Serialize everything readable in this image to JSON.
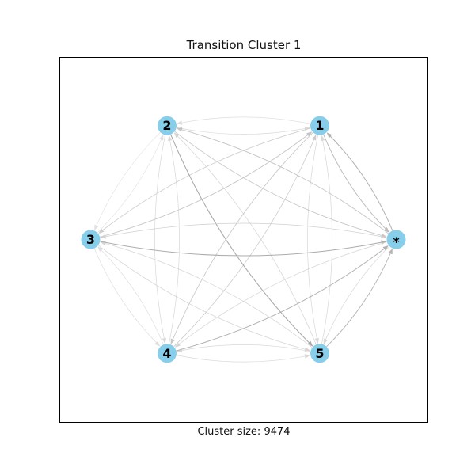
{
  "title": "Transition Cluster 1",
  "caption": "Cluster size: 9474",
  "colors": {
    "node": "#87ceeb",
    "frame": "#000000"
  },
  "nodes": [
    {
      "id": "1",
      "label": "1"
    },
    {
      "id": "2",
      "label": "2"
    },
    {
      "id": "3",
      "label": "3"
    },
    {
      "id": "4",
      "label": "4"
    },
    {
      "id": "5",
      "label": "5"
    },
    {
      "id": "*",
      "label": "*"
    }
  ],
  "edges": [
    {
      "from": "1",
      "to": "2",
      "weight": 0.15
    },
    {
      "from": "2",
      "to": "1",
      "weight": 0.2
    },
    {
      "from": "1",
      "to": "3",
      "weight": 0.35
    },
    {
      "from": "3",
      "to": "1",
      "weight": 0.45
    },
    {
      "from": "1",
      "to": "4",
      "weight": 0.4
    },
    {
      "from": "4",
      "to": "1",
      "weight": 0.35
    },
    {
      "from": "1",
      "to": "5",
      "weight": 0.2
    },
    {
      "from": "5",
      "to": "1",
      "weight": 0.2
    },
    {
      "from": "1",
      "to": "*",
      "weight": 0.55
    },
    {
      "from": "*",
      "to": "1",
      "weight": 0.65
    },
    {
      "from": "2",
      "to": "3",
      "weight": 0.1
    },
    {
      "from": "3",
      "to": "2",
      "weight": 0.1
    },
    {
      "from": "2",
      "to": "4",
      "weight": 0.2
    },
    {
      "from": "4",
      "to": "2",
      "weight": 0.2
    },
    {
      "from": "2",
      "to": "5",
      "weight": 0.75
    },
    {
      "from": "5",
      "to": "2",
      "weight": 0.25
    },
    {
      "from": "2",
      "to": "*",
      "weight": 0.4
    },
    {
      "from": "*",
      "to": "2",
      "weight": 0.45
    },
    {
      "from": "3",
      "to": "4",
      "weight": 0.15
    },
    {
      "from": "4",
      "to": "3",
      "weight": 0.15
    },
    {
      "from": "3",
      "to": "5",
      "weight": 0.25
    },
    {
      "from": "5",
      "to": "3",
      "weight": 0.25
    },
    {
      "from": "3",
      "to": "*",
      "weight": 0.7
    },
    {
      "from": "*",
      "to": "3",
      "weight": 0.3
    },
    {
      "from": "4",
      "to": "5",
      "weight": 0.2
    },
    {
      "from": "5",
      "to": "4",
      "weight": 0.2
    },
    {
      "from": "4",
      "to": "*",
      "weight": 0.65
    },
    {
      "from": "*",
      "to": "4",
      "weight": 0.25
    },
    {
      "from": "5",
      "to": "*",
      "weight": 0.6
    },
    {
      "from": "*",
      "to": "5",
      "weight": 0.2
    }
  ]
}
